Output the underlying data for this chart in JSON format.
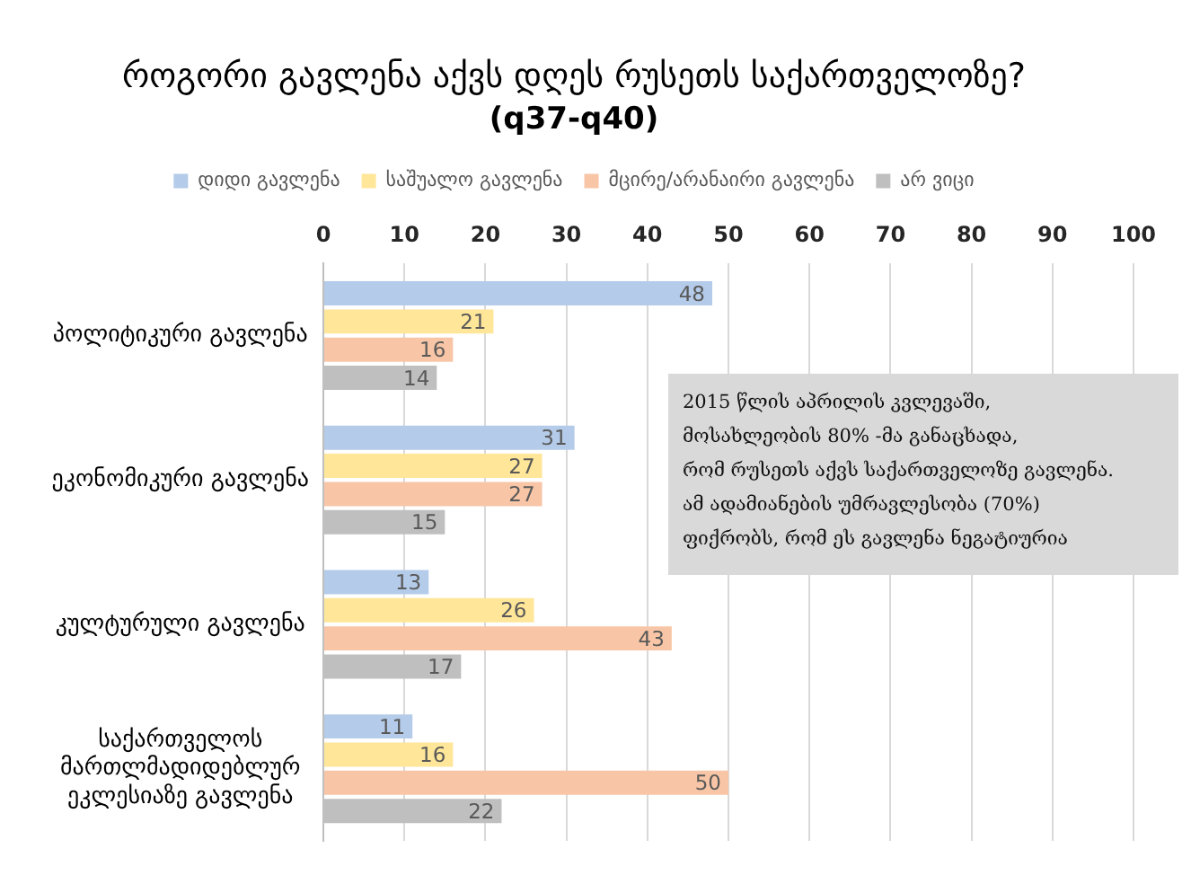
{
  "chart_data": {
    "type": "bar",
    "orientation": "horizontal",
    "title": "როგორი გავლენა აქვს დღეს რუსეთს საქართველოზე?",
    "subtitle": "(q37-q40)",
    "categories": [
      "პოლიტიკური გავლენა",
      "ეკონომიკური გავლენა",
      "კულტურული გავლენა",
      "საქართველოს მართლმადიდებლურ ეკლესიაზე გავლენა"
    ],
    "series": [
      {
        "name": "დიდი გავლენა",
        "color": "#b4cbe9",
        "values": [
          48,
          31,
          13,
          11
        ]
      },
      {
        "name": "საშუალო გავლენა",
        "color": "#ffe699",
        "values": [
          21,
          27,
          26,
          16
        ]
      },
      {
        "name": "მცირე/არანაირი გავლენა",
        "color": "#f8c6a6",
        "values": [
          16,
          27,
          43,
          50
        ]
      },
      {
        "name": "არ ვიცი",
        "color": "#bfbfbf",
        "values": [
          14,
          15,
          17,
          22
        ]
      }
    ],
    "xlim": [
      0,
      100
    ],
    "xticks": [
      0,
      10,
      20,
      30,
      40,
      50,
      60,
      70,
      80,
      90,
      100
    ],
    "grid": "x",
    "legend": "top",
    "data_labels": true,
    "annotations": [
      "2015 წლის აპრილის კვლევაში,\nმოსახლეობის 80% -მა განაცხადა,\nრომ რუსეთს აქვს საქართველოზე გავლენა.\nამ ადამიანების უმრავლესობა (70%)\nფიქრობს, რომ ეს გავლენა ნეგატიურია"
    ]
  }
}
